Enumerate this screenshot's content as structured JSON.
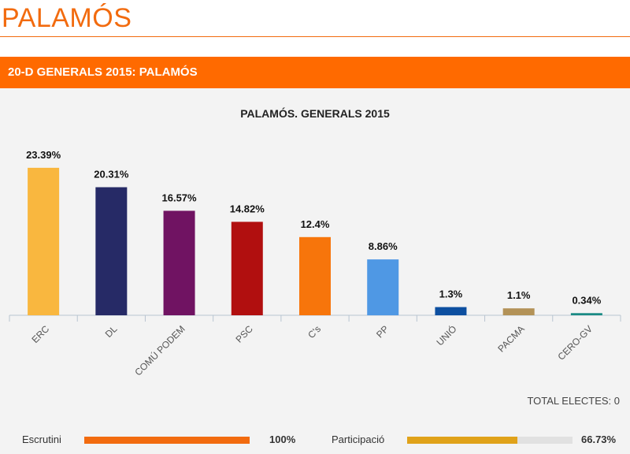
{
  "page": {
    "title": "PALAMÓS"
  },
  "section": {
    "title": "20-D GENERALS 2015: PALAMÓS"
  },
  "chart_data": {
    "type": "bar",
    "title": "PALAMÓS. GENERALS 2015",
    "categories": [
      "ERC",
      "DL",
      "COMÚ PODEM",
      "PSC",
      "C's",
      "PP",
      "UNIÓ",
      "PACMA",
      "CERO-GV"
    ],
    "values": [
      23.39,
      20.31,
      16.57,
      14.82,
      12.4,
      8.86,
      1.3,
      1.1,
      0.34
    ],
    "value_labels": [
      "23.39%",
      "20.31%",
      "16.57%",
      "14.82%",
      "12.4%",
      "8.86%",
      "1.3%",
      "1.1%",
      "0.34%"
    ],
    "colors": [
      "#f9b73f",
      "#262a66",
      "#701362",
      "#b10f0f",
      "#f7750b",
      "#4f98e4",
      "#0d4fa0",
      "#b39257",
      "#1a8a84"
    ],
    "ylim": [
      0,
      25
    ],
    "grid": false,
    "legend": "none"
  },
  "footer": {
    "total_electes": "TOTAL ELECTES: 0",
    "escrutini_label": "Escrutini",
    "escrutini_value": "100%",
    "escrutini_percent": 100,
    "escrutini_color": "#f26b0f",
    "participacio_label": "Participació",
    "participacio_value": "66.73%",
    "participacio_percent": 66.73,
    "participacio_color": "#e0a21a"
  }
}
